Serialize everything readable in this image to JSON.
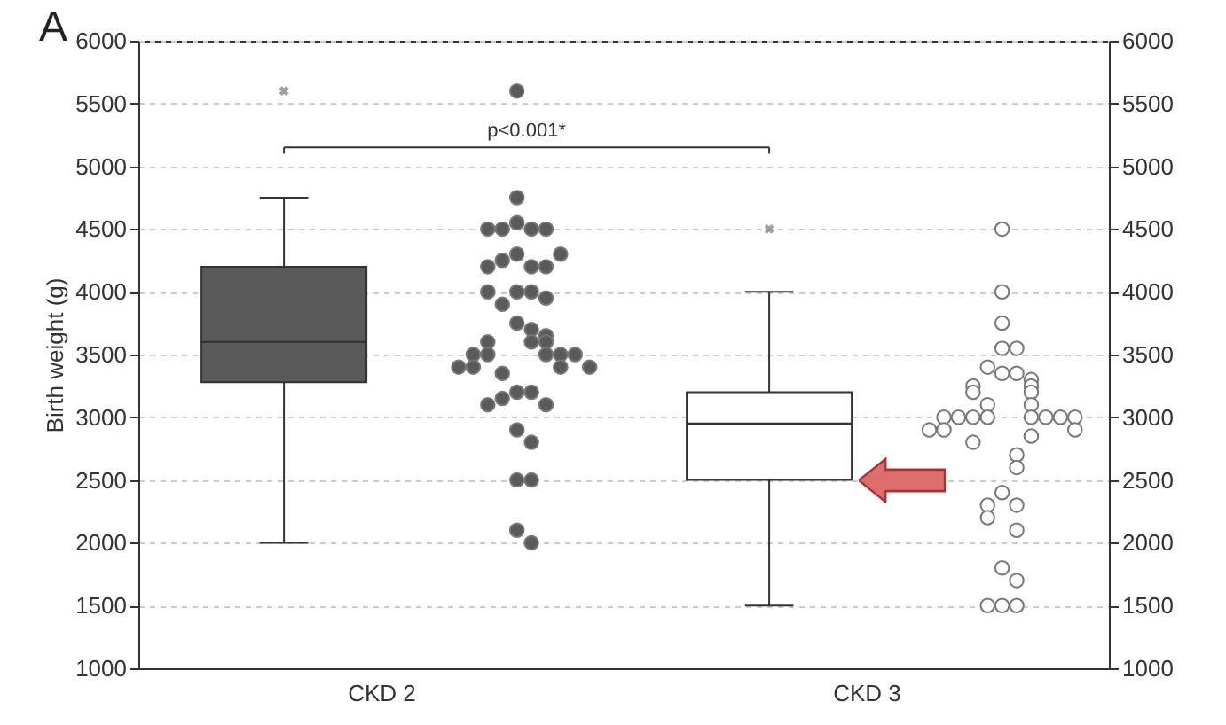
{
  "chart_data": {
    "type": "box",
    "categories": [
      "CKD 2",
      "CKD 3"
    ],
    "ylabel": "Birth weight (g)",
    "ylim": [
      1000,
      6000
    ],
    "yticks": [
      1000,
      1500,
      2000,
      2500,
      3000,
      3500,
      4000,
      4500,
      5000,
      5500,
      6000
    ],
    "y2lim": [
      1000,
      6000
    ],
    "y2ticks": [
      1000,
      1500,
      2000,
      2500,
      3000,
      3500,
      4000,
      4500,
      5000,
      5500,
      6000
    ],
    "grid": "y",
    "colors": [
      "#5a5a5a",
      "#ffffff"
    ],
    "boxes": [
      {
        "low": 2000,
        "q1": 3280,
        "median": 3600,
        "q3": 4200,
        "high": 4750,
        "outliers": [
          5600
        ]
      },
      {
        "low": 1500,
        "q1": 2500,
        "median": 2950,
        "q3": 3200,
        "high": 4000,
        "outliers": [
          4500
        ]
      }
    ],
    "series": [
      {
        "type": "scatter",
        "color": "#5a5a5a",
        "x": [
          "CKD 2",
          "CKD 2",
          "CKD 2",
          "CKD 2",
          "CKD 2",
          "CKD 2",
          "CKD 2",
          "CKD 2",
          "CKD 2",
          "CKD 2",
          "CKD 2",
          "CKD 2",
          "CKD 2",
          "CKD 2",
          "CKD 2",
          "CKD 2",
          "CKD 2",
          "CKD 2",
          "CKD 2",
          "CKD 2",
          "CKD 2",
          "CKD 2",
          "CKD 2",
          "CKD 2",
          "CKD 2",
          "CKD 2",
          "CKD 2",
          "CKD 2",
          "CKD 2",
          "CKD 2",
          "CKD 2",
          "CKD 2",
          "CKD 2",
          "CKD 2",
          "CKD 2",
          "CKD 2",
          "CKD 2",
          "CKD 2",
          "CKD 2",
          "CKD 2",
          "CKD 2",
          "CKD 2",
          "CKD 2",
          "CKD 2",
          "CKD 2"
        ],
        "values": [
          5600,
          4750,
          4550,
          4500,
          4500,
          4500,
          4500,
          4300,
          4200,
          4250,
          4200,
          4200,
          4300,
          4000,
          4000,
          3900,
          3950,
          4000,
          3750,
          3700,
          3600,
          3650,
          3600,
          3600,
          3500,
          3500,
          3500,
          3500,
          3500,
          3400,
          3400,
          3350,
          3400,
          3400,
          3200,
          3200,
          3150,
          3100,
          3100,
          2900,
          2800,
          2500,
          2500,
          2100,
          2000
        ]
      },
      {
        "type": "scatter",
        "color": "#ffffff",
        "x": [
          "CKD 3",
          "CKD 3",
          "CKD 3",
          "CKD 3",
          "CKD 3",
          "CKD 3",
          "CKD 3",
          "CKD 3",
          "CKD 3",
          "CKD 3",
          "CKD 3",
          "CKD 3",
          "CKD 3",
          "CKD 3",
          "CKD 3",
          "CKD 3",
          "CKD 3",
          "CKD 3",
          "CKD 3",
          "CKD 3",
          "CKD 3",
          "CKD 3",
          "CKD 3",
          "CKD 3",
          "CKD 3",
          "CKD 3",
          "CKD 3",
          "CKD 3",
          "CKD 3",
          "CKD 3",
          "CKD 3",
          "CKD 3",
          "CKD 3",
          "CKD 3",
          "CKD 3",
          "CKD 3",
          "CKD 3",
          "CKD 3",
          "CKD 3",
          "CKD 3"
        ],
        "values": [
          4500,
          4000,
          3750,
          3550,
          3550,
          3350,
          3350,
          3400,
          3300,
          3250,
          3250,
          3200,
          3200,
          3100,
          3100,
          3000,
          3000,
          3000,
          3000,
          3000,
          3000,
          3000,
          3000,
          2900,
          2900,
          2900,
          2850,
          2800,
          2700,
          2600,
          2400,
          2300,
          2300,
          2200,
          2100,
          1800,
          1700,
          1500,
          1500,
          1500
        ]
      }
    ],
    "annotations": [
      "A",
      "p<0.001*"
    ]
  }
}
